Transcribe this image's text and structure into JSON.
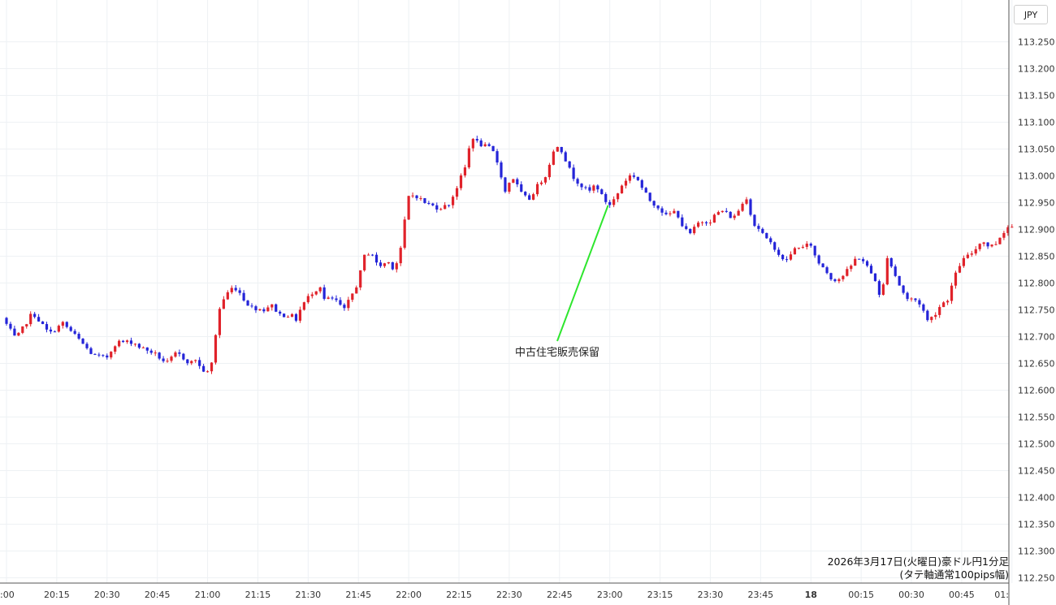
{
  "currency_label": "JPY",
  "caption_line1": "2026年3月17日(火曜日)豪ドル円1分足",
  "caption_line2": "(タテ軸通常100pips幅)",
  "colors": {
    "up": "#e0222a",
    "down": "#2424d8",
    "annotation_line": "#2ee62e",
    "grid": "#eef1f4"
  },
  "chart_data": {
    "type": "candlestick",
    "title": "",
    "xlabel": "",
    "ylabel": "",
    "ylim": [
      112.23,
      113.3
    ],
    "y_ticks": [
      "113.250",
      "113.200",
      "113.150",
      "113.100",
      "113.050",
      "113.000",
      "112.950",
      "112.900",
      "112.850",
      "112.800",
      "112.750",
      "112.700",
      "112.650",
      "112.600",
      "112.550",
      "112.500",
      "112.450",
      "112.400",
      "112.350",
      "112.300",
      "112.250"
    ],
    "x_ticks": [
      ":00",
      "20:15",
      "20:30",
      "20:45",
      "21:00",
      "21:15",
      "21:30",
      "21:45",
      "22:00",
      "22:15",
      "22:30",
      "22:45",
      "23:00",
      "23:15",
      "23:30",
      "23:45",
      "18",
      "00:15",
      "00:30",
      "00:45",
      "01:"
    ],
    "x_tick_minutes": [
      0,
      15,
      30,
      45,
      60,
      75,
      90,
      105,
      120,
      135,
      150,
      165,
      180,
      195,
      210,
      225,
      240,
      255,
      270,
      285,
      300
    ],
    "annotation": {
      "text": "中古住宅販売保留",
      "x_minute": 179.5,
      "y_price": 112.945
    },
    "path_anchors": [
      [
        0,
        112.735
      ],
      [
        4,
        112.695
      ],
      [
        9,
        112.745
      ],
      [
        14,
        112.705
      ],
      [
        18,
        112.725
      ],
      [
        22,
        112.7
      ],
      [
        27,
        112.665
      ],
      [
        31,
        112.66
      ],
      [
        34,
        112.69
      ],
      [
        39,
        112.69
      ],
      [
        41,
        112.68
      ],
      [
        45,
        112.67
      ],
      [
        49,
        112.65
      ],
      [
        52,
        112.67
      ],
      [
        56,
        112.65
      ],
      [
        58,
        112.66
      ],
      [
        59,
        112.64
      ],
      [
        62,
        112.63
      ],
      [
        63,
        112.68
      ],
      [
        65,
        112.76
      ],
      [
        68,
        112.79
      ],
      [
        70,
        112.79
      ],
      [
        72,
        112.77
      ],
      [
        74,
        112.755
      ],
      [
        78,
        112.75
      ],
      [
        80,
        112.76
      ],
      [
        83,
        112.74
      ],
      [
        86,
        112.74
      ],
      [
        88,
        112.73
      ],
      [
        89,
        112.755
      ],
      [
        92,
        112.78
      ],
      [
        95,
        112.795
      ],
      [
        96,
        112.77
      ],
      [
        99,
        112.77
      ],
      [
        102,
        112.75
      ],
      [
        104,
        112.775
      ],
      [
        106,
        112.8
      ],
      [
        108,
        112.85
      ],
      [
        110,
        112.86
      ],
      [
        112,
        112.83
      ],
      [
        115,
        112.84
      ],
      [
        117,
        112.825
      ],
      [
        119,
        112.87
      ],
      [
        121,
        112.96
      ],
      [
        123,
        112.965
      ],
      [
        126,
        112.95
      ],
      [
        130,
        112.94
      ],
      [
        133,
        112.945
      ],
      [
        135,
        112.97
      ],
      [
        138,
        113.015
      ],
      [
        140,
        113.075
      ],
      [
        142,
        113.06
      ],
      [
        144,
        113.055
      ],
      [
        146,
        113.05
      ],
      [
        148,
        113.02
      ],
      [
        150,
        112.97
      ],
      [
        152,
        113.0
      ],
      [
        155,
        112.965
      ],
      [
        157,
        112.955
      ],
      [
        160,
        112.985
      ],
      [
        162,
        113.0
      ],
      [
        164,
        113.04
      ],
      [
        166,
        113.06
      ],
      [
        168,
        113.03
      ],
      [
        170,
        113.0
      ],
      [
        173,
        112.98
      ],
      [
        175,
        112.97
      ],
      [
        177,
        112.985
      ],
      [
        179,
        112.96
      ],
      [
        181,
        112.945
      ],
      [
        183,
        112.96
      ],
      [
        185,
        112.985
      ],
      [
        187,
        113.0
      ],
      [
        189,
        113.0
      ],
      [
        191,
        112.975
      ],
      [
        193,
        112.955
      ],
      [
        196,
        112.94
      ],
      [
        198,
        112.925
      ],
      [
        201,
        112.935
      ],
      [
        203,
        112.905
      ],
      [
        205,
        112.89
      ],
      [
        208,
        112.915
      ],
      [
        211,
        112.915
      ],
      [
        213,
        112.93
      ],
      [
        215,
        112.935
      ],
      [
        218,
        112.92
      ],
      [
        220,
        112.94
      ],
      [
        222,
        112.96
      ],
      [
        224,
        112.91
      ],
      [
        226,
        112.9
      ],
      [
        228,
        112.88
      ],
      [
        230,
        112.87
      ],
      [
        233,
        112.84
      ],
      [
        235,
        112.85
      ],
      [
        237,
        112.87
      ],
      [
        239,
        112.865
      ],
      [
        241,
        112.875
      ],
      [
        243,
        112.84
      ],
      [
        245,
        112.83
      ],
      [
        247,
        112.81
      ],
      [
        249,
        112.805
      ],
      [
        251,
        112.815
      ],
      [
        253,
        112.83
      ],
      [
        255,
        112.85
      ],
      [
        257,
        112.84
      ],
      [
        259,
        112.82
      ],
      [
        261,
        112.8
      ],
      [
        262,
        112.76
      ],
      [
        264,
        112.85
      ],
      [
        266,
        112.82
      ],
      [
        268,
        112.79
      ],
      [
        270,
        112.77
      ],
      [
        272,
        112.77
      ],
      [
        274,
        112.76
      ],
      [
        276,
        112.73
      ],
      [
        278,
        112.74
      ],
      [
        280,
        112.76
      ],
      [
        282,
        112.77
      ],
      [
        284,
        112.81
      ],
      [
        286,
        112.84
      ],
      [
        288,
        112.85
      ],
      [
        290,
        112.86
      ],
      [
        292,
        112.88
      ],
      [
        294,
        112.87
      ],
      [
        296,
        112.87
      ],
      [
        298,
        112.89
      ],
      [
        300,
        112.905
      ],
      [
        302,
        112.905
      ]
    ],
    "candle_count": 251
  }
}
